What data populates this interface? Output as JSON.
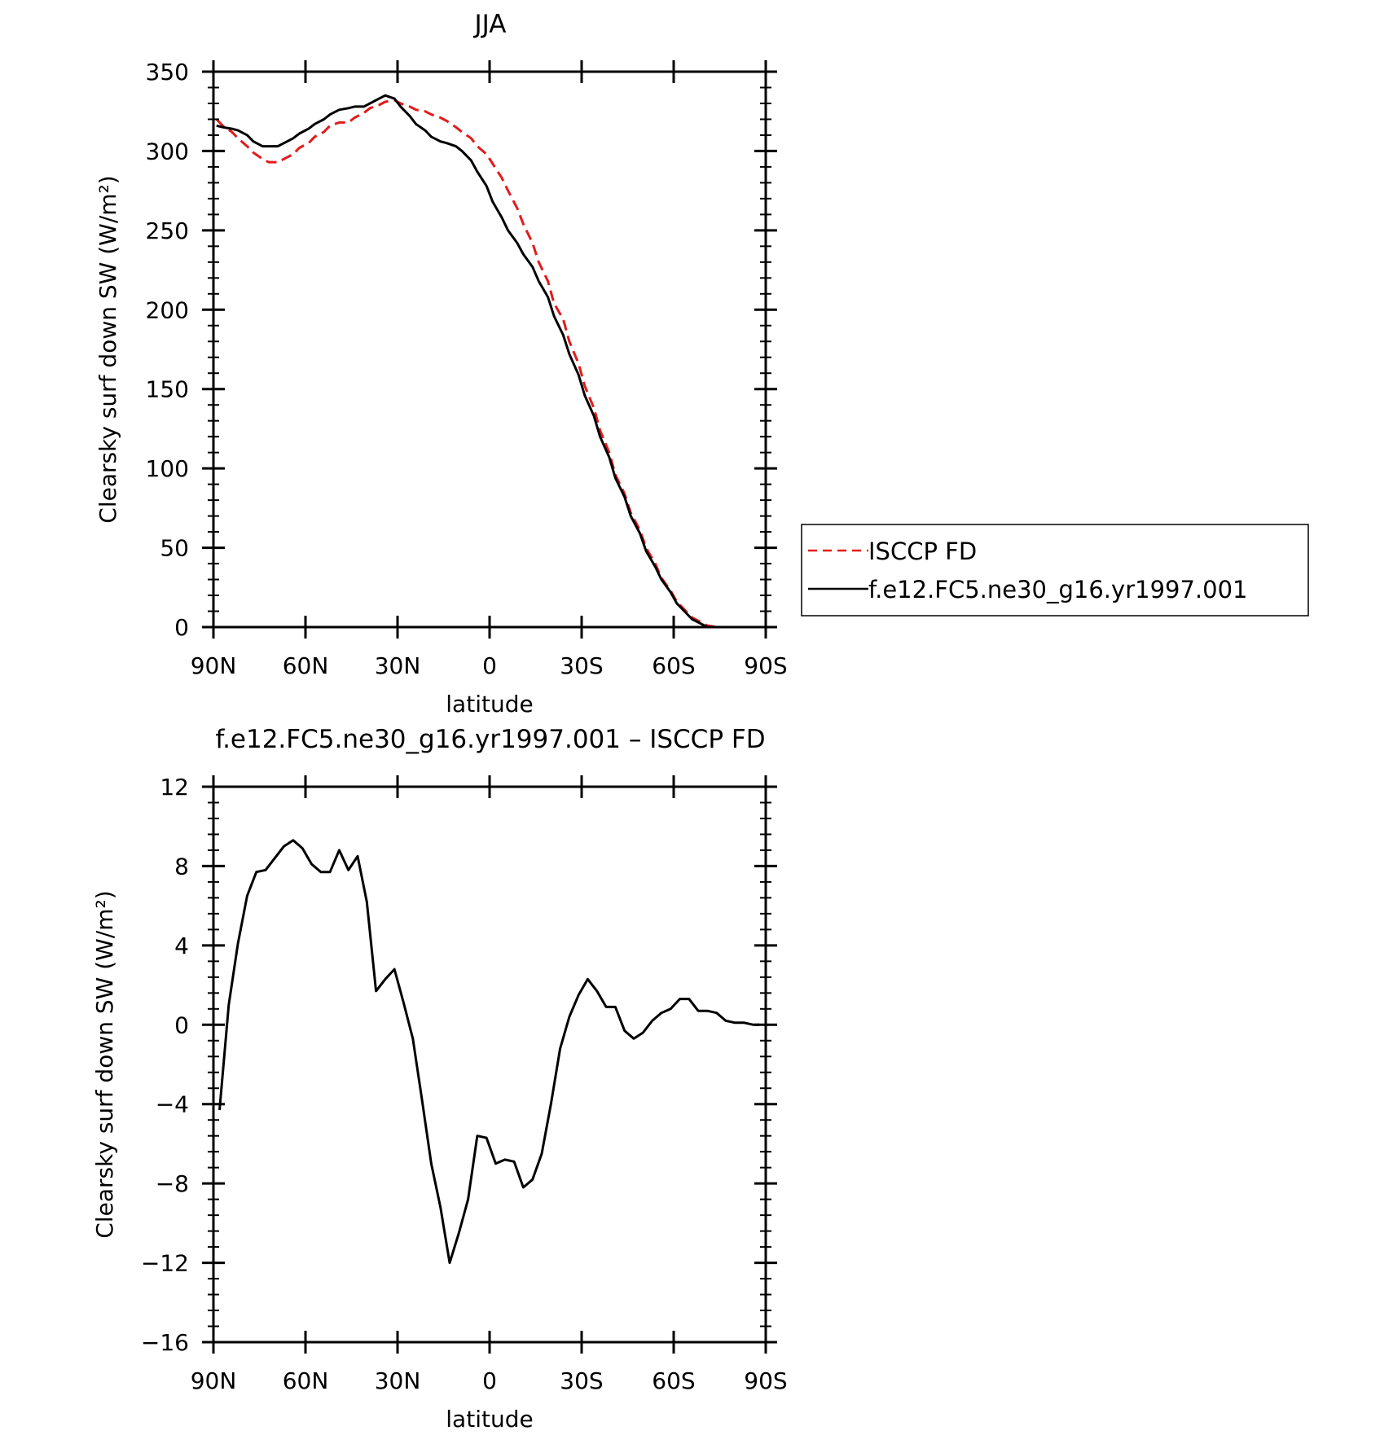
{
  "chart_data": [
    {
      "type": "line",
      "title": "JJA",
      "xlabel": "latitude",
      "ylabel": "Clearsky surf down SW (W/m²)",
      "x": [
        89,
        87,
        84,
        82,
        79,
        77,
        74,
        72,
        69,
        67,
        64,
        62,
        59,
        57,
        54,
        52,
        49,
        46,
        44,
        41,
        39,
        36,
        34,
        31,
        29,
        26,
        24,
        21,
        19,
        16,
        14,
        11,
        9,
        6,
        4,
        1,
        -1,
        -4,
        -6,
        -9,
        -11,
        -14,
        -16,
        -19,
        -21,
        -24,
        -26,
        -29,
        -31,
        -34,
        -36,
        -39,
        -41,
        -44,
        -46,
        -49,
        -51,
        -54,
        -56,
        -59,
        -61,
        -64,
        -66,
        -69,
        -71,
        -74,
        -76,
        -79,
        -81,
        -84,
        -87,
        -89
      ],
      "xticks": [
        90,
        60,
        30,
        0,
        -30,
        -60,
        -90
      ],
      "xticklabels": [
        "90N",
        "60N",
        "30N",
        "0",
        "30S",
        "60S",
        "90S"
      ],
      "xlim": [
        90,
        -90
      ],
      "ylim": [
        0,
        350
      ],
      "yticks": [
        0,
        50,
        100,
        150,
        200,
        250,
        300,
        350
      ],
      "yticklabels": [
        "0",
        "50",
        "100",
        "150",
        "200",
        "250",
        "300",
        "350"
      ],
      "series": [
        {
          "name": "ISCCP FD",
          "color": "#e41a1c",
          "dash": "dashed",
          "values": [
            320,
            316,
            312,
            308,
            303,
            299,
            295,
            293,
            293,
            295,
            298,
            302,
            305,
            309,
            312,
            316,
            318,
            318,
            321,
            324,
            327,
            329,
            331,
            332,
            330,
            328,
            326,
            325,
            323,
            321,
            319,
            315,
            312,
            308,
            303,
            298,
            292,
            283,
            275,
            264,
            254,
            242,
            230,
            218,
            204,
            194,
            180,
            166,
            152,
            138,
            124,
            110,
            96,
            84,
            72,
            61,
            50,
            40,
            31,
            23,
            16,
            10,
            6,
            3,
            1,
            0,
            0,
            0,
            0,
            0,
            0,
            0
          ]
        },
        {
          "name": "f.e12.FC5.ne30_g16.yr1997.001",
          "color": "#000000",
          "dash": "solid",
          "values": [
            316,
            315,
            314,
            313,
            310,
            306,
            303,
            303,
            303,
            305,
            308,
            311,
            314,
            317,
            320,
            323,
            326,
            327,
            328,
            328,
            330,
            333,
            335,
            333,
            328,
            322,
            317,
            313,
            309,
            306,
            305,
            303,
            300,
            294,
            287,
            278,
            268,
            258,
            250,
            242,
            235,
            227,
            218,
            208,
            196,
            184,
            172,
            159,
            146,
            133,
            120,
            107,
            94,
            82,
            70,
            59,
            48,
            38,
            30,
            22,
            15,
            9,
            5,
            2,
            0,
            0,
            0,
            0,
            0,
            0,
            0,
            0
          ]
        }
      ],
      "legend": {
        "placement": "right",
        "entries": [
          "ISCCP FD",
          "f.e12.FC5.ne30_g16.yr1997.001"
        ]
      }
    },
    {
      "type": "line",
      "title": "f.e12.FC5.ne30_g16.yr1997.001 – ISCCP FD",
      "xlabel": "latitude",
      "ylabel": "Clearsky surf down SW (W/m²)",
      "x": [
        88,
        85,
        82,
        79,
        76,
        73,
        70,
        67,
        64,
        61,
        58,
        55,
        52,
        49,
        46,
        43,
        40,
        37,
        34,
        31,
        28,
        25,
        22,
        19,
        16,
        13,
        10,
        7,
        4,
        1,
        -2,
        -5,
        -8,
        -11,
        -14,
        -17,
        -20,
        -23,
        -26,
        -29,
        -32,
        -35,
        -38,
        -41,
        -44,
        -47,
        -50,
        -53,
        -56,
        -59,
        -62,
        -65,
        -68,
        -71,
        -74,
        -77,
        -80,
        -83,
        -86,
        -88
      ],
      "xticks": [
        90,
        60,
        30,
        0,
        -30,
        -60,
        -90
      ],
      "xticklabels": [
        "90N",
        "60N",
        "30N",
        "0",
        "30S",
        "60S",
        "90S"
      ],
      "xlim": [
        90,
        -90
      ],
      "ylim": [
        -16,
        12
      ],
      "yticks": [
        -16,
        -12,
        -8,
        -4,
        0,
        4,
        8,
        12
      ],
      "yticklabels": [
        "−16",
        "−12",
        "−8",
        "−4",
        "0",
        "4",
        "8",
        "12"
      ],
      "series": [
        {
          "name": "",
          "color": "#000000",
          "dash": "solid",
          "values": [
            -4.3,
            1.0,
            4.1,
            6.5,
            7.7,
            7.8,
            8.4,
            9.0,
            9.3,
            8.9,
            8.1,
            7.7,
            7.7,
            8.8,
            7.8,
            8.5,
            6.2,
            1.7,
            2.3,
            2.8,
            1.1,
            -0.7,
            -3.8,
            -7.0,
            -9.2,
            -12.0,
            -10.5,
            -8.8,
            -5.6,
            -5.7,
            -7.0,
            -6.8,
            -6.9,
            -8.2,
            -7.8,
            -6.5,
            -4.0,
            -1.2,
            0.4,
            1.5,
            2.3,
            1.7,
            0.9,
            0.9,
            -0.3,
            -0.7,
            -0.4,
            0.2,
            0.6,
            0.8,
            1.3,
            1.3,
            0.7,
            0.7,
            0.6,
            0.2,
            0.1,
            0.1,
            0.0,
            0.0
          ]
        }
      ]
    }
  ]
}
